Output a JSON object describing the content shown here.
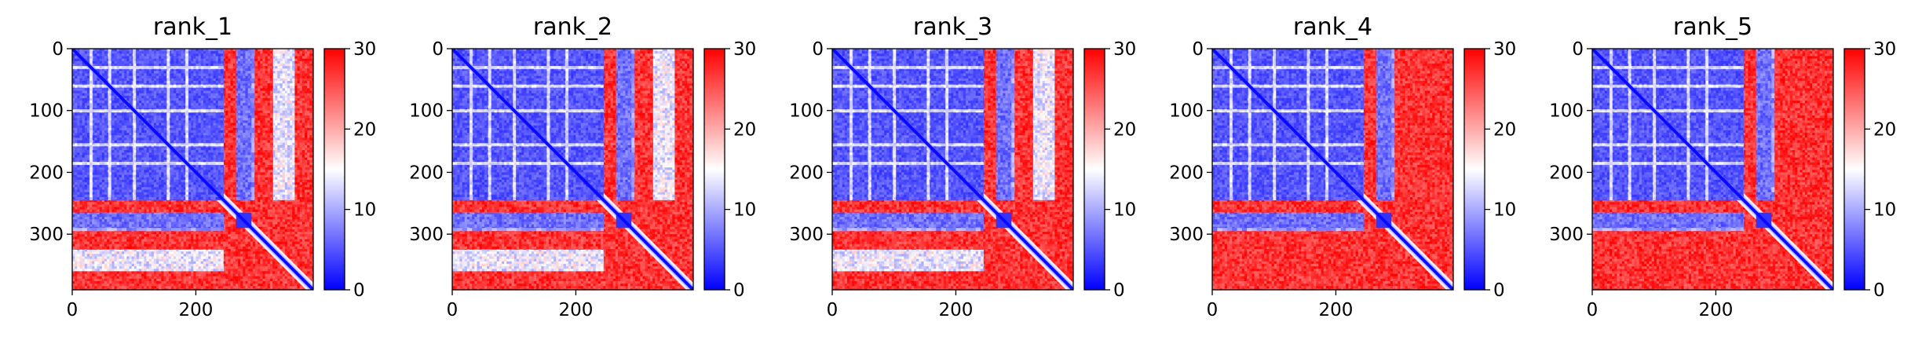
{
  "chart_data": {
    "type": "heatmap",
    "colormap": [
      "#0000ff",
      "#ffffff",
      "#ff0000"
    ],
    "vmin": 0,
    "vmax": 30,
    "matrix_size": 390,
    "panels": [
      {
        "title": "rank_1",
        "variant": 1
      },
      {
        "title": "rank_2",
        "variant": 2
      },
      {
        "title": "rank_3",
        "variant": 3
      },
      {
        "title": "rank_4",
        "variant": 4
      },
      {
        "title": "rank_5",
        "variant": 5
      }
    ],
    "y_ticks": [
      {
        "value": 0,
        "label": "0"
      },
      {
        "value": 100,
        "label": "100"
      },
      {
        "value": 200,
        "label": "200"
      },
      {
        "value": 300,
        "label": "300"
      }
    ],
    "x_ticks": [
      {
        "value": 0,
        "label": "0"
      },
      {
        "value": 200,
        "label": "200"
      }
    ],
    "colorbar_ticks": [
      {
        "value": 0,
        "label": "0"
      },
      {
        "value": 10,
        "label": "10"
      },
      {
        "value": 20,
        "label": "20"
      },
      {
        "value": 30,
        "label": "30"
      }
    ]
  }
}
